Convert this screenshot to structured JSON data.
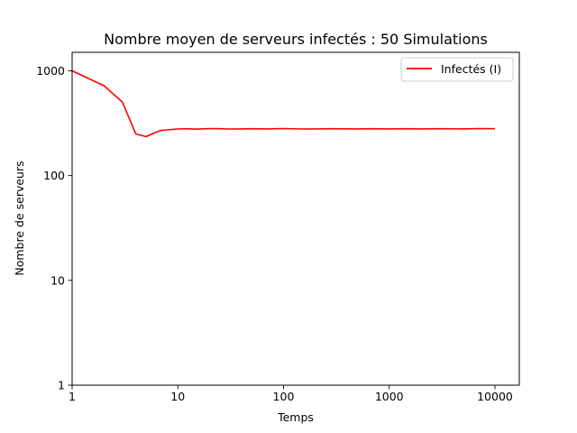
{
  "chart_data": {
    "type": "line",
    "title": "Nombre moyen de serveurs infectés : 50 Simulations",
    "xlabel": "Temps",
    "ylabel": "Nombre de serveurs",
    "xscale": "log",
    "yscale": "log",
    "xlim": [
      1,
      17000
    ],
    "ylim": [
      1,
      1500
    ],
    "xticks": [
      1,
      10,
      100,
      1000,
      10000
    ],
    "xtick_labels": [
      "1",
      "10",
      "100",
      "1000",
      "10000"
    ],
    "yticks": [
      1,
      10,
      100,
      1000
    ],
    "ytick_labels": [
      "1",
      "10",
      "100",
      "1000"
    ],
    "grid": false,
    "legend_position": "top-right",
    "series": [
      {
        "name": "Infectés (I)",
        "color": "#ff0000",
        "x": [
          1,
          2,
          3,
          4,
          5,
          6,
          7,
          8,
          9,
          10,
          12,
          15,
          20,
          25,
          30,
          40,
          50,
          70,
          100,
          150,
          200,
          300,
          500,
          700,
          1000,
          1500,
          2000,
          3000,
          5000,
          7000,
          10000
        ],
        "y": [
          1000,
          720,
          500,
          250,
          235,
          255,
          270,
          273,
          276,
          278,
          280,
          277,
          281,
          280,
          278,
          279,
          280,
          279,
          281,
          278,
          279,
          280,
          279,
          280,
          279,
          280,
          279,
          280,
          279,
          281,
          280
        ]
      }
    ]
  }
}
